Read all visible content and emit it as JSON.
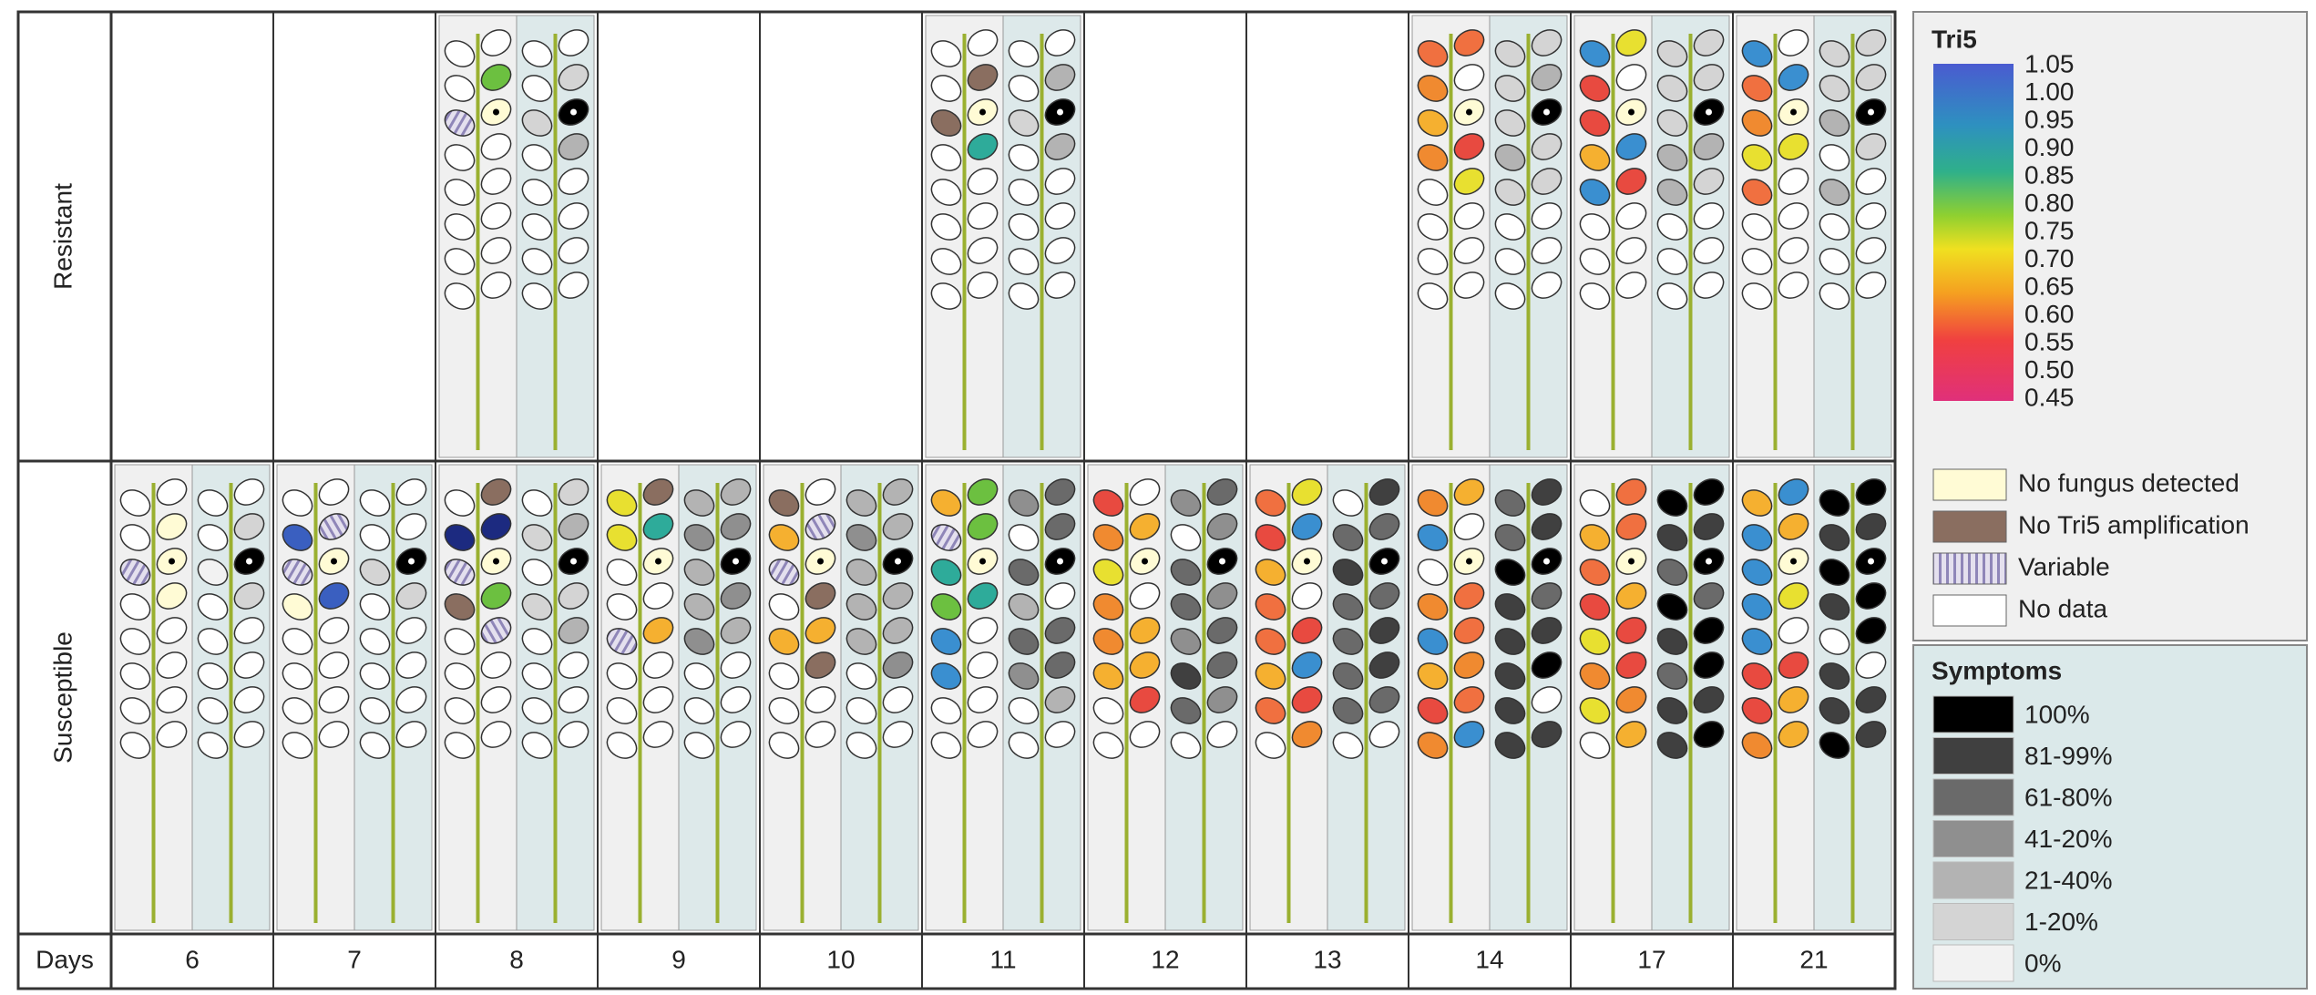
{
  "row_labels": [
    "Resistant",
    "Susceptible"
  ],
  "days_label": "Days",
  "days": [
    "6",
    "7",
    "8",
    "9",
    "10",
    "11",
    "12",
    "13",
    "14",
    "17",
    "21"
  ],
  "legend": {
    "tri5": {
      "title": "Tri5",
      "scale_labels": [
        "1.05",
        "1.00",
        "0.95",
        "0.90",
        "0.85",
        "0.80",
        "0.75",
        "0.70",
        "0.65",
        "0.60",
        "0.55",
        "0.50",
        "0.45"
      ],
      "categories": [
        "No fungus detected",
        "No Tri5 amplification",
        "Variable",
        "No data"
      ]
    },
    "symptoms": {
      "title": "Symptoms",
      "levels": [
        "100%",
        "81-99%",
        "61-80%",
        "41-20%",
        "21-40%",
        "1-20%",
        "0%"
      ]
    }
  }
}
